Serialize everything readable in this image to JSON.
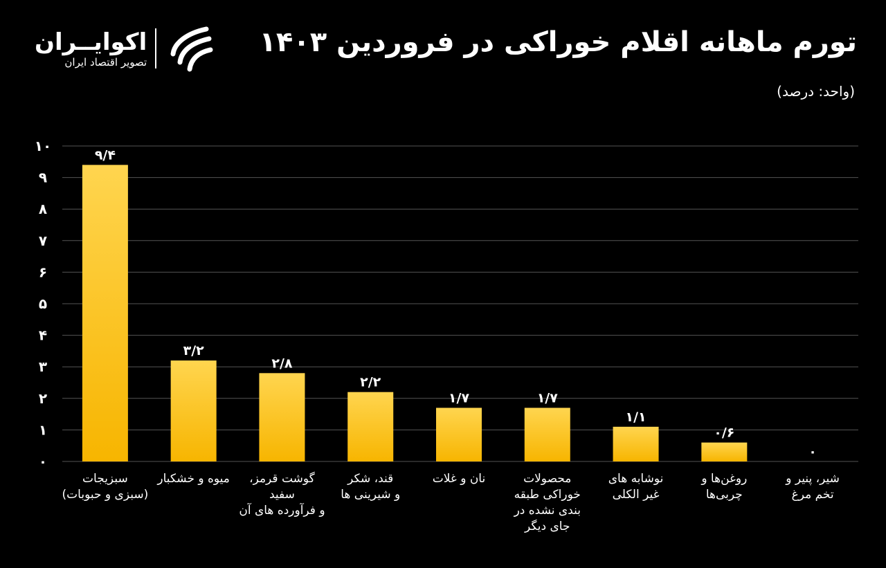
{
  "header": {
    "title": "تورم ماهانه اقلام خوراکی در فروردین ۱۴۰۳",
    "unit": "(واحد: درصد)"
  },
  "logo": {
    "name": "اکوایــران",
    "subtitle": "تصویر اقتصاد ایران",
    "icon": "ecoiran-swoosh-icon"
  },
  "colors": {
    "background": "#000000",
    "bar_top": "#ffd54f",
    "bar_bottom": "#f7b500",
    "grid": "#555555"
  },
  "chart_data": {
    "type": "bar",
    "title": "تورم ماهانه اقلام خوراکی در فروردین ۱۴۰۳",
    "ylabel": "(واحد: درصد)",
    "xlabel": "",
    "ylim": [
      0,
      10
    ],
    "grid": true,
    "yticks": [
      0,
      1,
      2,
      3,
      4,
      5,
      6,
      7,
      8,
      9,
      10
    ],
    "ytick_labels": [
      "۰",
      "۱",
      "۲",
      "۳",
      "۴",
      "۵",
      "۶",
      "۷",
      "۸",
      "۹",
      "۱۰"
    ],
    "categories": [
      [
        "سبزیجات",
        "(سبزی و حبوبات)"
      ],
      [
        "میوه و خشکبار"
      ],
      [
        "گوشت قرمز،",
        "سفید",
        "و فرآورده های آن"
      ],
      [
        "قند، شکر",
        "و شیرینی ها"
      ],
      [
        "نان و غلات"
      ],
      [
        "محصولات",
        "خوراکی طبقه",
        "بندی نشده در",
        "جای دیگر"
      ],
      [
        "نوشابه های",
        "غیر الکلی"
      ],
      [
        "روغن‌ها و",
        "چربی‌ها"
      ],
      [
        "شیر، پنیر و",
        "تخم مرغ"
      ]
    ],
    "values": [
      9.4,
      3.2,
      2.8,
      2.2,
      1.7,
      1.7,
      1.1,
      0.6,
      0
    ],
    "data_labels": [
      "۹/۴",
      "۳/۲",
      "۲/۸",
      "۲/۲",
      "۱/۷",
      "۱/۷",
      "۱/۱",
      "۰/۶",
      "۰"
    ]
  }
}
